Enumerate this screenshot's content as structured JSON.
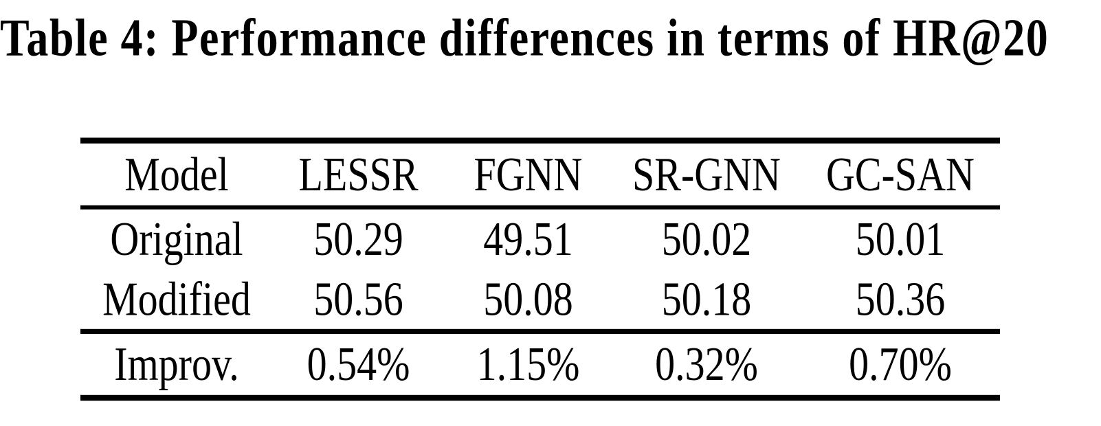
{
  "title": "Table 4: Performance differences in terms of HR@20",
  "colors": {
    "text": "#000000",
    "background": "#ffffff",
    "rule": "#000000"
  },
  "table": {
    "columns": [
      "Model",
      "LESSR",
      "FGNN",
      "SR-GNN",
      "GC-SAN"
    ],
    "rows": [
      {
        "label": "Original",
        "values": [
          "50.29",
          "49.51",
          "50.02",
          "50.01"
        ]
      },
      {
        "label": "Modified",
        "values": [
          "50.56",
          "50.08",
          "50.18",
          "50.36"
        ]
      }
    ],
    "footer": {
      "label": "Improv.",
      "values": [
        "0.54%",
        "1.15%",
        "0.32%",
        "0.70%"
      ]
    }
  },
  "chart_data": {
    "type": "table",
    "title": "Table 4: Performance differences in terms of HR@20",
    "columns": [
      "Model",
      "LESSR",
      "FGNN",
      "SR-GNN",
      "GC-SAN"
    ],
    "rows": [
      [
        "Original",
        50.29,
        49.51,
        50.02,
        50.01
      ],
      [
        "Modified",
        50.56,
        50.08,
        50.18,
        50.36
      ],
      [
        "Improv.",
        "0.54%",
        "1.15%",
        "0.32%",
        "0.70%"
      ]
    ]
  }
}
